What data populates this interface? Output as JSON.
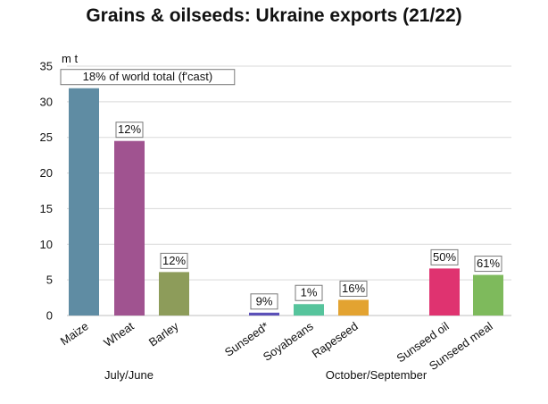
{
  "chart_data": {
    "type": "bar",
    "title": "Grains & oilseeds: Ukraine exports (21/22)",
    "ylabel": "m t",
    "ylim": [
      0,
      35
    ],
    "yticks": [
      0,
      5,
      10,
      15,
      20,
      25,
      30,
      35
    ],
    "grid": true,
    "categories": [
      "Maize",
      "Wheat",
      "Barley",
      "Sunseed*",
      "Soyabeans",
      "Rapeseed",
      "Sunseed oil",
      "Sunseed meal"
    ],
    "values": [
      31.9,
      24.5,
      6.1,
      0.4,
      1.6,
      2.2,
      6.6,
      5.7
    ],
    "data_labels": [
      "18% of  world total (f'cast)",
      "12%",
      "12%",
      "9%",
      "1%",
      "16%",
      "50%",
      "61%"
    ],
    "colors": [
      "#5f8ca3",
      "#a05390",
      "#8d9c5a",
      "#5b50b8",
      "#56c49c",
      "#e3a331",
      "#df3370",
      "#7eba5c"
    ],
    "groups": [
      {
        "label": "July/June",
        "categories": [
          "Maize",
          "Wheat",
          "Barley"
        ]
      },
      {
        "label": "October/September",
        "categories": [
          "Sunseed*",
          "Soyabeans",
          "Rapeseed",
          "Sunseed oil",
          "Sunseed meal"
        ]
      }
    ]
  }
}
